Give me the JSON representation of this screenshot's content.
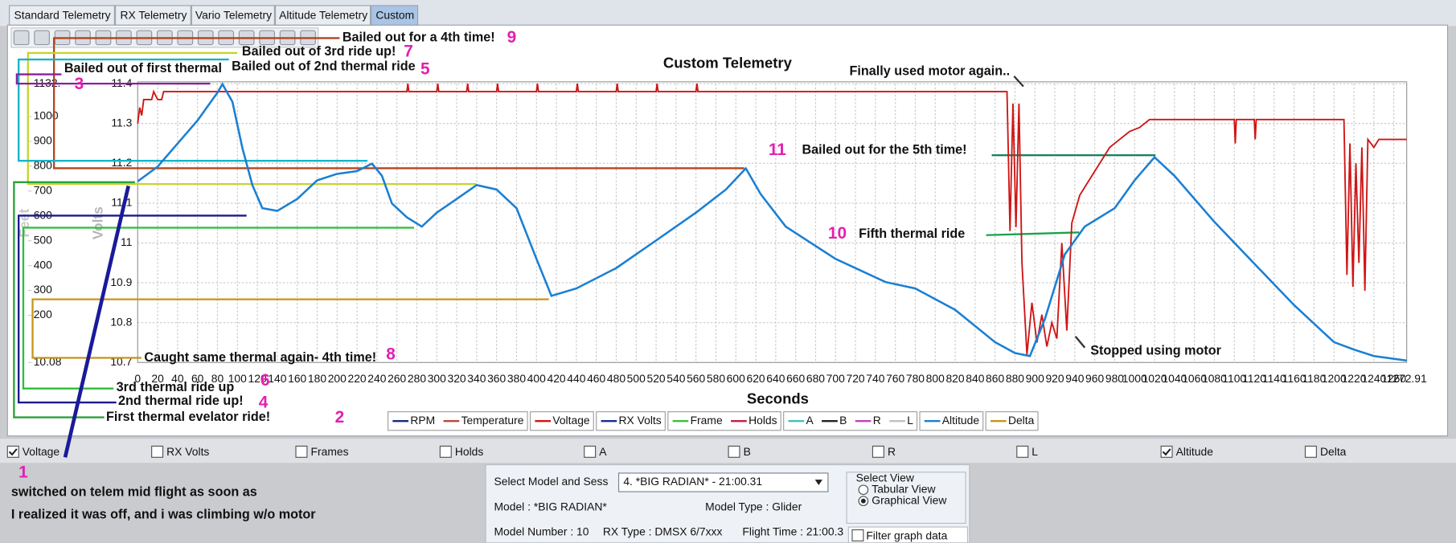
{
  "tabs": [
    {
      "label": "Standard Telemetry",
      "selected": false
    },
    {
      "label": "RX Telemetry",
      "selected": false
    },
    {
      "label": "Vario Telemetry",
      "selected": false
    },
    {
      "label": "Altitude Telemetry",
      "selected": false
    },
    {
      "label": "Custom",
      "selected": true
    }
  ],
  "chart_data": {
    "type": "line",
    "title": "Custom Telemetry",
    "x_label": "Seconds",
    "y_label": "Volts",
    "y2_label": "Feet",
    "xlim": [
      0,
      1272.91
    ],
    "ylim": [
      10.7,
      11.4
    ],
    "y2lim": [
      10.08,
      1132
    ],
    "xticks": [
      0,
      20,
      40,
      60,
      80,
      100,
      120,
      140,
      160,
      180,
      200,
      220,
      240,
      260,
      280,
      300,
      320,
      340,
      360,
      380,
      400,
      420,
      440,
      460,
      480,
      500,
      520,
      540,
      560,
      580,
      600,
      620,
      640,
      660,
      680,
      700,
      720,
      740,
      760,
      780,
      800,
      820,
      840,
      860,
      880,
      900,
      920,
      940,
      960,
      980,
      1000,
      1020,
      1040,
      1060,
      1080,
      1100,
      1120,
      1140,
      1160,
      1180,
      1200,
      1220,
      1240,
      1260,
      1272.91
    ],
    "yticks": [
      10.7,
      10.8,
      10.9,
      11,
      11.1,
      11.2,
      11.3,
      11.4
    ],
    "y2ticks": [
      10.08,
      200,
      300,
      400,
      500,
      600,
      700,
      800,
      900,
      1000,
      {
        "value": 1132,
        "label": "1132."
      }
    ],
    "grid": true,
    "series": [
      {
        "name": "RPM",
        "color": "#1a2a7a"
      },
      {
        "name": "Temperature",
        "color": "#b84a3a"
      },
      {
        "name": "Voltage",
        "color": "#d01414",
        "axis": "y",
        "x": [
          0,
          2,
          4,
          6,
          14,
          16,
          20,
          24,
          26,
          270,
          271,
          272,
          300,
          301,
          302,
          330,
          331,
          332,
          360,
          361,
          362,
          400,
          401,
          402,
          440,
          441,
          442,
          480,
          481,
          482,
          520,
          521,
          522,
          560,
          561,
          562,
          872,
          875,
          878,
          881,
          884,
          887,
          892,
          897,
          902,
          907,
          912,
          917,
          922,
          927,
          932,
          937,
          945,
          955,
          965,
          975,
          985,
          995,
          1005,
          1015,
          1040,
          1100,
          1101,
          1102,
          1120,
          1121,
          1122,
          1210,
          1213,
          1216,
          1219,
          1222,
          1225,
          1228,
          1231,
          1234,
          1240,
          1245,
          1272.91
        ],
        "values": [
          11.3,
          11.34,
          11.32,
          11.36,
          11.36,
          11.38,
          11.36,
          11.36,
          11.38,
          11.38,
          11.4,
          11.38,
          11.38,
          11.4,
          11.38,
          11.38,
          11.4,
          11.38,
          11.38,
          11.4,
          11.38,
          11.38,
          11.4,
          11.38,
          11.38,
          11.4,
          11.38,
          11.38,
          11.4,
          11.38,
          11.38,
          11.4,
          11.38,
          11.38,
          11.4,
          11.38,
          11.38,
          11.03,
          11.35,
          11.04,
          11.35,
          10.95,
          10.72,
          10.85,
          10.75,
          10.82,
          10.74,
          10.8,
          10.76,
          11.0,
          10.78,
          11.05,
          11.12,
          11.16,
          11.2,
          11.24,
          11.26,
          11.28,
          11.29,
          11.31,
          11.31,
          11.31,
          11.25,
          11.31,
          11.31,
          11.26,
          11.31,
          11.31,
          10.92,
          11.25,
          10.89,
          11.2,
          10.95,
          11.24,
          10.88,
          11.26,
          11.24,
          11.26,
          11.26
        ]
      },
      {
        "name": "RX Volts",
        "color": "#1a2a9a"
      },
      {
        "name": "Frame",
        "color": "#3ac03a"
      },
      {
        "name": "Holds",
        "color": "#c02040"
      },
      {
        "name": "A",
        "color": "#40c0c0"
      },
      {
        "name": "B",
        "color": "#202020"
      },
      {
        "name": "R",
        "color": "#c040c0"
      },
      {
        "name": "L",
        "color": "#c0c0c0"
      },
      {
        "name": "Altitude",
        "color": "#1a7fd4",
        "axis": "y2",
        "x": [
          0,
          20,
          40,
          60,
          70,
          80,
          85,
          95,
          105,
          115,
          125,
          140,
          160,
          180,
          200,
          220,
          235,
          245,
          255,
          270,
          285,
          300,
          320,
          340,
          360,
          380,
          400,
          415,
          440,
          480,
          520,
          560,
          590,
          610,
          625,
          650,
          700,
          750,
          780,
          820,
          860,
          880,
          895,
          910,
          930,
          950,
          980,
          1000,
          1020,
          1040,
          1080,
          1120,
          1160,
          1200,
          1220,
          1240,
          1272.91
        ],
        "values": [
          739,
          798,
          891,
          984,
          1040,
          1096,
          1130,
          1059,
          873,
          724,
          631,
          620,
          668,
          743,
          769,
          780,
          810,
          761,
          650,
          594,
          557,
          613,
          668,
          724,
          706,
          631,
          427,
          278,
          308,
          390,
          501,
          613,
          706,
          791,
          687,
          557,
          427,
          334,
          308,
          222,
          92,
          48,
          36,
          185,
          445,
          557,
          631,
          743,
          836,
          761,
          576,
          408,
          241,
          92,
          62,
          36,
          18
        ]
      },
      {
        "name": "Delta",
        "color": "#c8941a"
      }
    ],
    "annotations": [
      {
        "text": "Bailed out for a 4th time!",
        "number": 9
      },
      {
        "text": "Bailed out of 3rd ride up!",
        "number": 7
      },
      {
        "text": "Bailed out of 2nd thermal ride",
        "number": 5
      },
      {
        "text": "Bailed out of first thermal",
        "number": 3
      },
      {
        "text": "Finally used motor again.."
      },
      {
        "text": "Bailed out for the 5th time!",
        "number": 11
      },
      {
        "text": "Fifth thermal ride",
        "number": 10
      },
      {
        "text": "Stopped using motor"
      },
      {
        "text": "Caught same thermal again- 4th time!",
        "number": 8
      },
      {
        "text": "3rd thermal ride up",
        "number": 6
      },
      {
        "text": "2nd thermal ride up!",
        "number": 4
      },
      {
        "text": "First thermal evelator ride!",
        "number": 2
      },
      {
        "text": "switched on telem mid flight as soon as",
        "number": 1
      },
      {
        "text": "I realized it was off, and i was climbing w/o motor"
      }
    ]
  },
  "checkboxes": [
    {
      "label": "Voltage",
      "checked": true
    },
    {
      "label": "RX Volts",
      "checked": false
    },
    {
      "label": "Frames",
      "checked": false
    },
    {
      "label": "Holds",
      "checked": false
    },
    {
      "label": "A",
      "checked": false
    },
    {
      "label": "B",
      "checked": false
    },
    {
      "label": "R",
      "checked": false
    },
    {
      "label": "L",
      "checked": false
    },
    {
      "label": "Altitude",
      "checked": true
    },
    {
      "label": "Delta",
      "checked": false
    }
  ],
  "panel": {
    "session_label": "Select Model and Sess",
    "session": "4. *BIG RADIAN* - 21:00.31",
    "model": "Model : *BIG RADIAN*",
    "model_type": "Model Type : Glider",
    "model_number": "Model Number : 10",
    "rx_type": "RX Type : DMSX 6/7xxx",
    "flight_time": "Flight Time : 21:00.3",
    "view_label": "Select View",
    "views": [
      {
        "label": "Tabular View",
        "selected": false
      },
      {
        "label": "Graphical View",
        "selected": true
      }
    ],
    "filter": {
      "label": "Filter graph data",
      "checked": false
    }
  }
}
